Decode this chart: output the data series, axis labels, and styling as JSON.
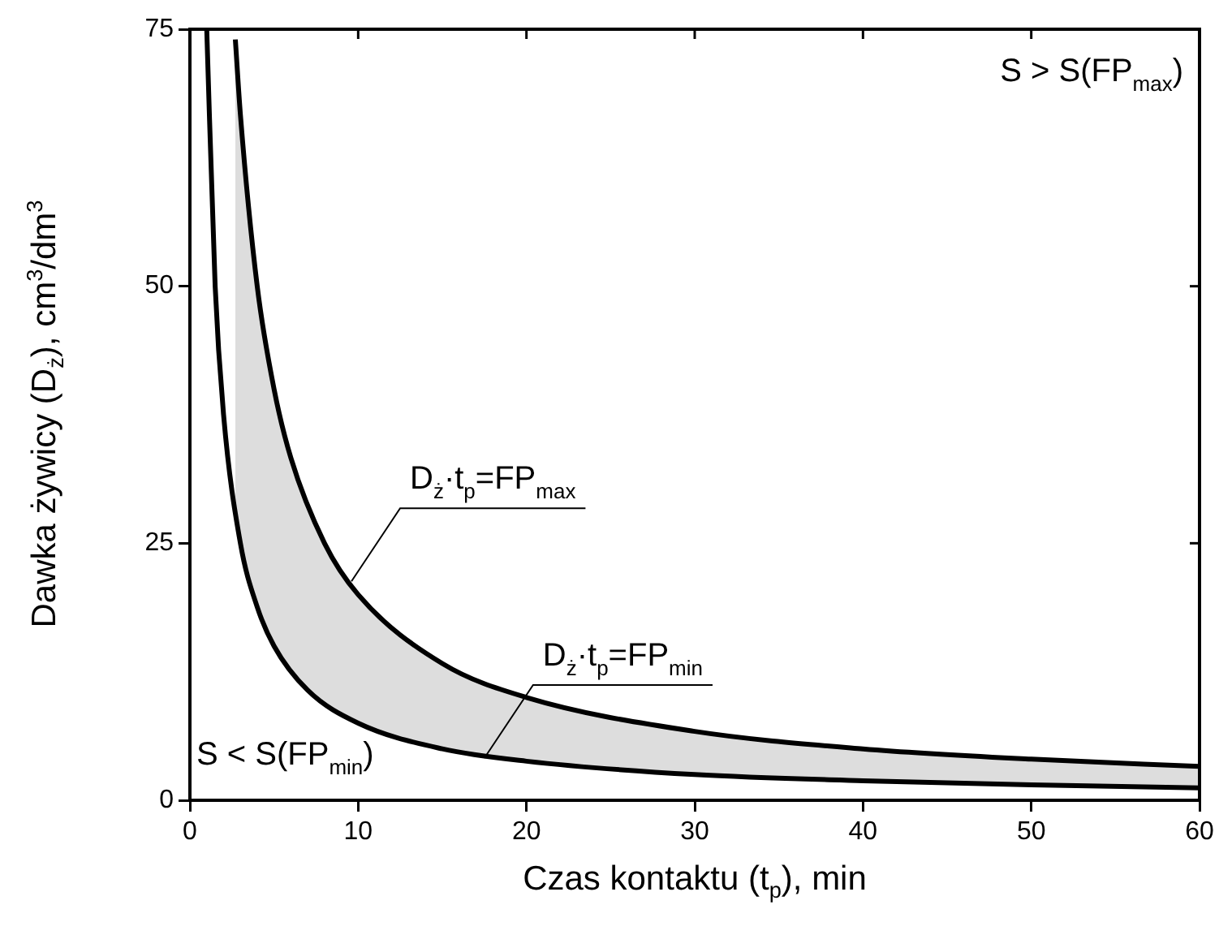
{
  "chart_data": {
    "type": "line",
    "xlabel": "Czas kontaktu (t$_{p}$), min",
    "ylabel": "Dawka żywicy (D$_{ż}$), cm$^{3}$/dm$^{3}$",
    "xlim": [
      0,
      60
    ],
    "xticks": [
      0,
      10,
      20,
      30,
      40,
      50,
      60
    ],
    "ylim": [
      0,
      75
    ],
    "yticks": [
      0,
      25,
      50,
      75
    ],
    "grid": false,
    "legend": false,
    "marker": "none",
    "line_style": "solid",
    "series": [
      {
        "color": "#000000",
        "x": [
          2.7,
          3,
          4,
          5,
          6,
          8,
          10,
          15,
          20,
          30,
          40,
          50,
          60
        ],
        "values": [
          74,
          66.7,
          50,
          40,
          33.3,
          25,
          20,
          13.3,
          10,
          6.7,
          5,
          4,
          3.3
        ]
      },
      {
        "color": "#000000",
        "x": [
          1,
          1.5,
          2,
          3,
          4,
          5,
          7,
          10,
          15,
          20,
          30,
          40,
          50,
          60
        ],
        "values": [
          75,
          50,
          37.5,
          25,
          18.8,
          15,
          10.7,
          7.5,
          5,
          3.8,
          2.5,
          1.9,
          1.5,
          1.2
        ]
      }
    ],
    "annotations": [
      "S > S(FP$_{max}$)",
      "S < S(FP$_{min}$)",
      {
        "text": "D$_{ż}$·t$_{p}$=FP$_{max}$",
        "x": 9.6,
        "y": 21.3
      },
      {
        "text": "D$_{ż}$·t$_{p}$=FP$_{min}$",
        "x": 17.5,
        "y": 4.1
      }
    ]
  }
}
